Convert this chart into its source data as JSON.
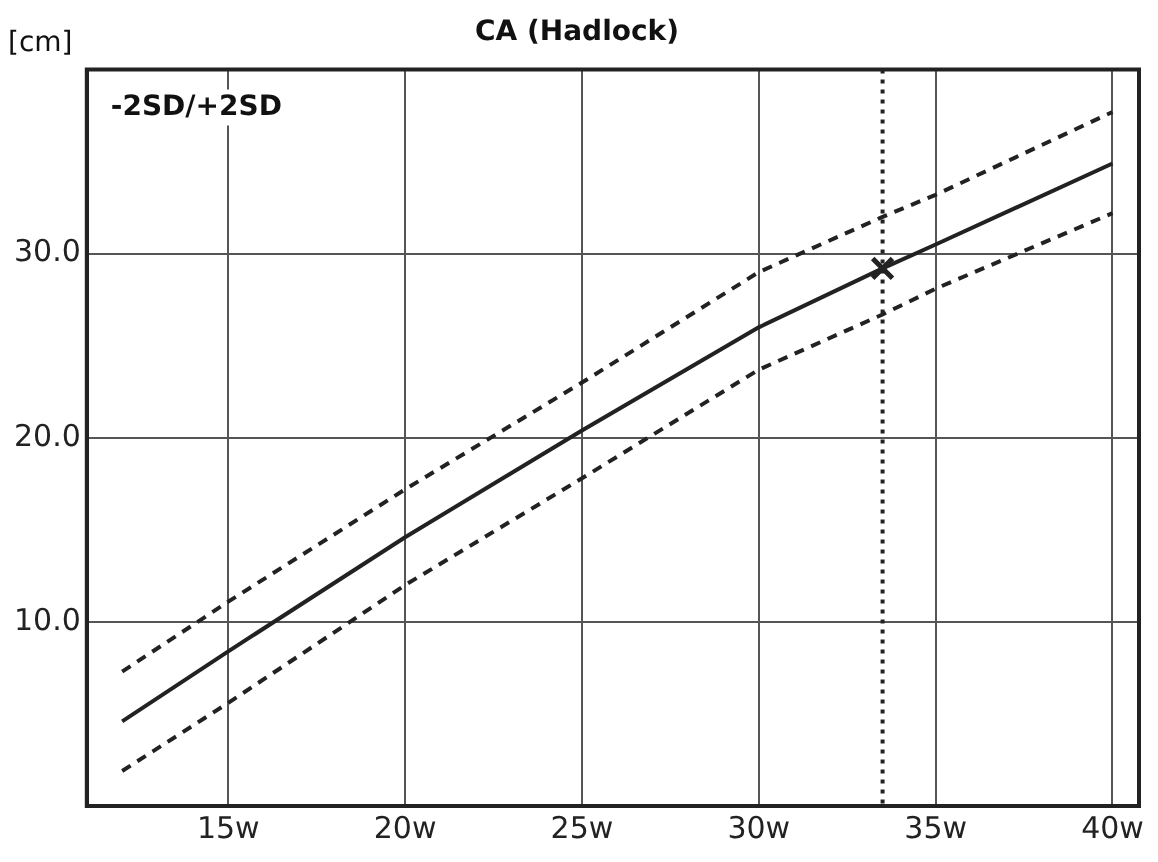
{
  "chart_data": {
    "type": "line",
    "title": "CA (Hadlock)",
    "ylabel": "[cm]",
    "annotations": [
      "-2SD/+2SD"
    ],
    "xlim": [
      11,
      40.75
    ],
    "ylim": [
      0,
      40
    ],
    "xticks": [
      {
        "value": 15,
        "label": "15w"
      },
      {
        "value": 20,
        "label": "20w"
      },
      {
        "value": 25,
        "label": "25w"
      },
      {
        "value": 30,
        "label": "30w"
      },
      {
        "value": 35,
        "label": "35w"
      },
      {
        "value": 40,
        "label": "40w"
      }
    ],
    "yticks": [
      {
        "value": 10,
        "label": "10.0"
      },
      {
        "value": 20,
        "label": "20.0"
      },
      {
        "value": 30,
        "label": "30.0"
      }
    ],
    "grid": true,
    "legend": false,
    "marker": "none",
    "series": [
      {
        "color": "#222222",
        "line_style": "dashed",
        "x": [
          12,
          15,
          20,
          25,
          30,
          33.5,
          35,
          40
        ],
        "values": [
          7.3,
          11.1,
          17.2,
          23.0,
          29.0,
          32.0,
          33.2,
          37.7
        ]
      },
      {
        "color": "#222222",
        "line_style": "solid",
        "x": [
          12,
          15,
          20,
          25,
          30,
          33.5,
          35,
          40
        ],
        "values": [
          4.6,
          8.4,
          14.6,
          20.4,
          26.0,
          29.2,
          30.5,
          34.9
        ]
      },
      {
        "color": "#222222",
        "line_style": "dashed",
        "x": [
          12,
          15,
          20,
          25,
          30,
          33.5,
          35,
          40
        ],
        "values": [
          1.9,
          5.6,
          12.0,
          17.8,
          23.7,
          26.7,
          28.1,
          32.2
        ]
      },
      {
        "type": "scatter",
        "color": "#222222",
        "marker": "cross",
        "x": [
          33.5
        ],
        "values": [
          29.2
        ]
      }
    ],
    "ref_lines": [
      {
        "axis": "x",
        "value": 33.5,
        "color": "#222222",
        "line_style": "dotted"
      }
    ]
  }
}
